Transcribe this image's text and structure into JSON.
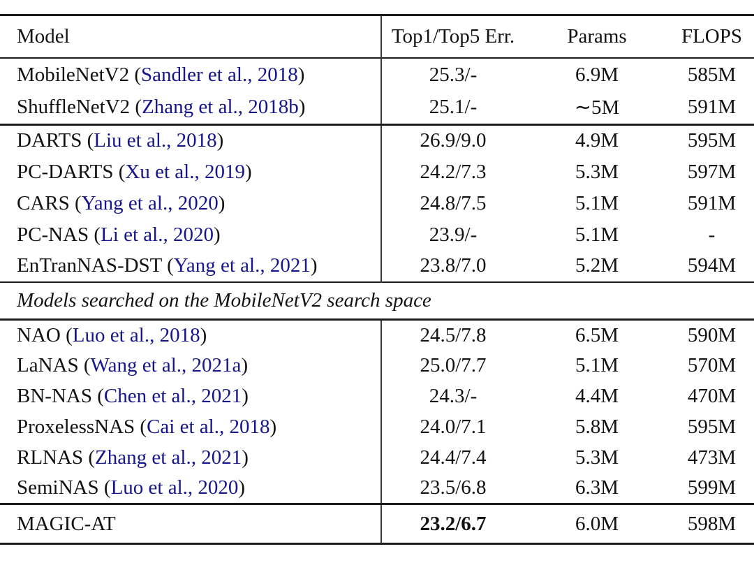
{
  "colors": {
    "citation_blue": "#16168b",
    "text": "#121212",
    "rule": "#1b1b1b"
  },
  "table": {
    "columns": [
      "Model",
      "Top1/Top5 Err.",
      "Params",
      "FLOPS"
    ],
    "groups": [
      {
        "type": "rows",
        "rows": [
          {
            "name": "MobileNetV2",
            "citation": "Sandler et al., 2018",
            "top": "25.3/-",
            "params": "6.9M",
            "flops": "585M"
          },
          {
            "name": "ShuffleNetV2",
            "citation": "Zhang et al., 2018b",
            "top": "25.1/-",
            "params": "∼5M",
            "flops": "591M"
          }
        ]
      },
      {
        "type": "rows",
        "rows": [
          {
            "name": "DARTS",
            "citation": "Liu et al., 2018",
            "top": "26.9/9.0",
            "params": "4.9M",
            "flops": "595M"
          },
          {
            "name": "PC-DARTS",
            "citation": "Xu et al., 2019",
            "top": "24.2/7.3",
            "params": "5.3M",
            "flops": "597M"
          },
          {
            "name": "CARS",
            "citation": "Yang et al., 2020",
            "top": "24.8/7.5",
            "params": "5.1M",
            "flops": "591M"
          },
          {
            "name": "PC-NAS",
            "citation": "Li et al., 2020",
            "top": "23.9/-",
            "params": "5.1M",
            "flops": "-"
          },
          {
            "name": "EnTranNAS-DST",
            "citation": "Yang et al., 2021",
            "top": "23.8/7.0",
            "params": "5.2M",
            "flops": "594M"
          }
        ]
      },
      {
        "type": "section",
        "label": "Models searched on the MobileNetV2 search space"
      },
      {
        "type": "rows",
        "rows": [
          {
            "name": "NAO",
            "citation": "Luo et al., 2018",
            "top": "24.5/7.8",
            "params": "6.5M",
            "flops": "590M"
          },
          {
            "name": "LaNAS",
            "citation": "Wang et al., 2021a",
            "top": "25.0/7.7",
            "params": "5.1M",
            "flops": "570M"
          },
          {
            "name": "BN-NAS",
            "citation": "Chen et al., 2021",
            "top": "24.3/-",
            "params": "4.4M",
            "flops": "470M"
          },
          {
            "name": "ProxelessNAS",
            "citation": "Cai et al., 2018",
            "top": "24.0/7.1",
            "params": "5.8M",
            "flops": "595M"
          },
          {
            "name": "RLNAS",
            "citation": "Zhang et al., 2021",
            "top": "24.4/7.4",
            "params": "5.3M",
            "flops": "473M"
          },
          {
            "name": "SemiNAS",
            "citation": "Luo et al., 2020",
            "top": "23.5/6.8",
            "params": "6.3M",
            "flops": "599M"
          }
        ]
      },
      {
        "type": "rows",
        "rows": [
          {
            "name": "MAGIC-AT",
            "citation": null,
            "top": "23.2/6.7",
            "bold": true,
            "params": "6.0M",
            "flops": "598M"
          }
        ]
      }
    ]
  }
}
